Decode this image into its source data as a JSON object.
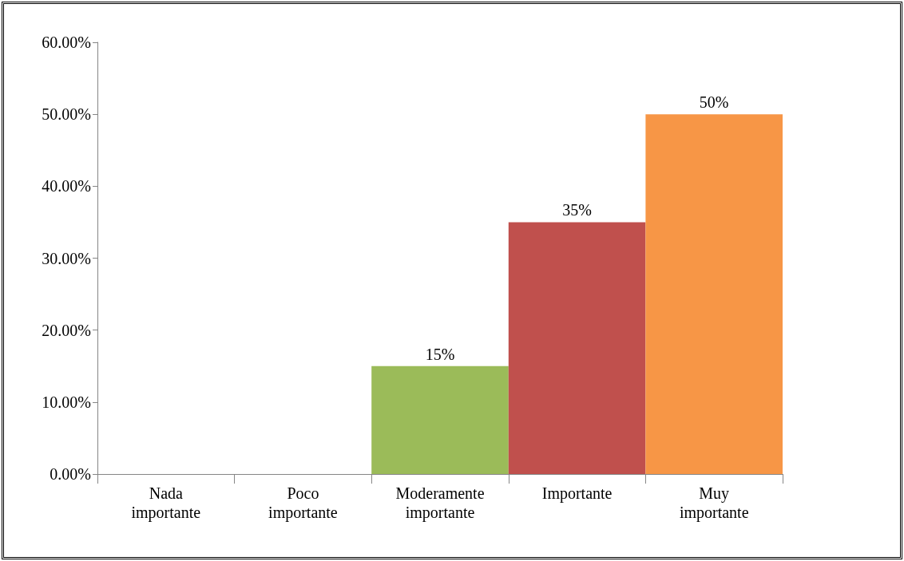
{
  "chart_data": {
    "type": "bar",
    "categories": [
      "Nada\nimportante",
      "Poco\nimportante",
      "Moderamente\nimportante",
      "Importante",
      "Muy\nimportante"
    ],
    "values": [
      0,
      0,
      15,
      35,
      50
    ],
    "colors": [
      null,
      null,
      "#9bbb59",
      "#c0504d",
      "#f79646"
    ],
    "value_labels": [
      null,
      null,
      "15%",
      "35%",
      "50%"
    ],
    "ylim": [
      0,
      60
    ],
    "yticks": [
      {
        "value": 0,
        "label": "0.00%"
      },
      {
        "value": 10,
        "label": "10.00%"
      },
      {
        "value": 20,
        "label": "20.00%"
      },
      {
        "value": 30,
        "label": "30.00%"
      },
      {
        "value": 40,
        "label": "40.00%"
      },
      {
        "value": 50,
        "label": "50.00%"
      },
      {
        "value": 60,
        "label": "60.00%"
      }
    ],
    "grid": false
  }
}
